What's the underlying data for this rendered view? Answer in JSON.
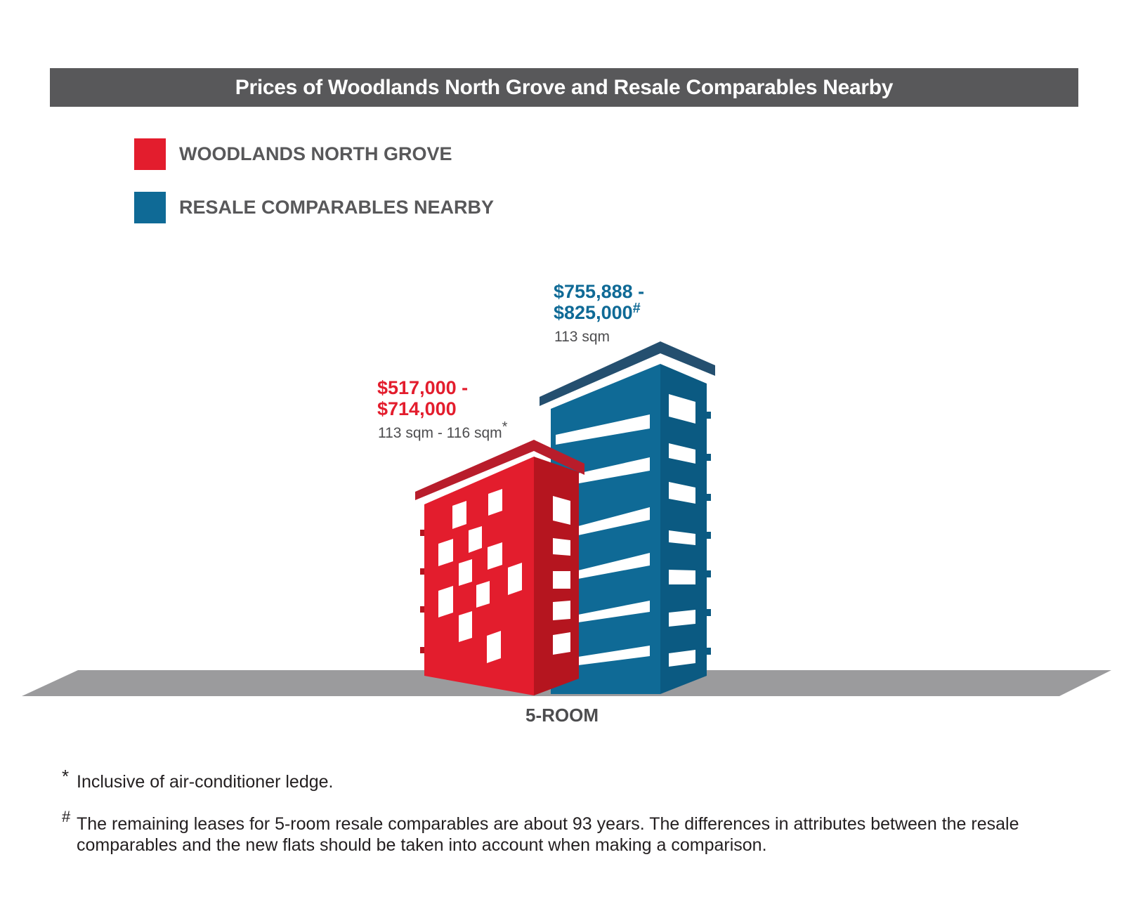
{
  "title": "Prices of Woodlands North Grove and Resale Comparables Nearby",
  "colors": {
    "title_bg": "#58585a",
    "red": "#e31d2d",
    "blue": "#0f6a96",
    "ground": "#9b9b9d",
    "text_gray": "#58585a"
  },
  "legend": [
    {
      "label": "WOODLANDS NORTH GROVE",
      "color": "#e31d2d"
    },
    {
      "label": "RESALE COMPARABLES NEARBY",
      "color": "#0f6a96"
    }
  ],
  "chart_data": {
    "type": "bar",
    "categories": [
      "5-ROOM"
    ],
    "series": [
      {
        "name": "WOODLANDS NORTH GROVE",
        "price_range": [
          517000,
          714000
        ],
        "price_line1": "$517,000 -",
        "price_line2": "$714,000",
        "area": "113 sqm - 116 sqm",
        "area_mark": "*",
        "price_mark": ""
      },
      {
        "name": "RESALE COMPARABLES NEARBY",
        "price_range": [
          755888,
          825000
        ],
        "price_line1": "$755,888 -",
        "price_line2": "$825,000",
        "area": "113 sqm",
        "area_mark": "",
        "price_mark": "#"
      }
    ],
    "legend_position": "top-left"
  },
  "footnotes": [
    {
      "mark": "*",
      "text": "Inclusive of air-conditioner ledge."
    },
    {
      "mark": "#",
      "text": "The remaining leases for 5-room resale comparables are about 93 years. The differences in attributes between the resale comparables and the new flats should be taken into account when making a comparison."
    }
  ]
}
